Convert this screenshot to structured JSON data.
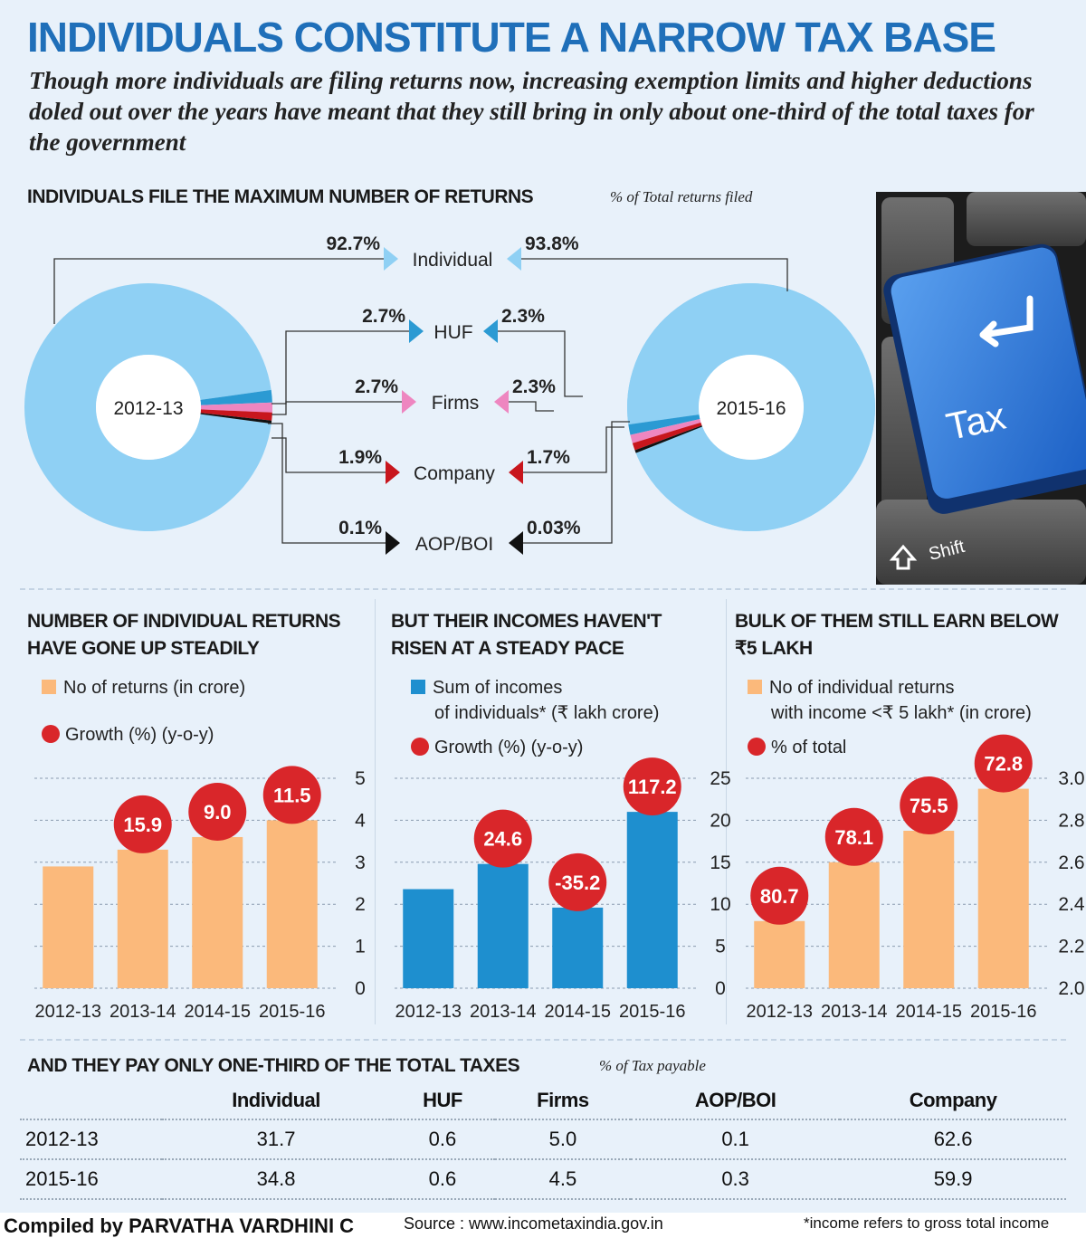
{
  "title": "INDIVIDUALS CONSTITUTE A NARROW TAX BASE",
  "subtitle": "Though more individuals are filing returns now, increasing exemption limits and higher deductions doled out over the years have meant that they still bring in only about one-third of the total taxes for the government",
  "returns_section": {
    "heading": "INDIVIDUALS FILE THE MAXIMUM NUMBER OF RETURNS",
    "note": "% of Total returns filed"
  },
  "photo": {
    "key_label": "Tax",
    "shift_label": "Shift"
  },
  "colors": {
    "individual": "#8fd0f4",
    "huf": "#2b9ad3",
    "firms": "#ee86c0",
    "company": "#c8161d",
    "aop": "#111111",
    "title_blue": "#1f6fb9",
    "bar_orange": "#fbb97b",
    "bar_blue": "#1e8fcf",
    "dot_red": "#d9262a"
  },
  "table_section": {
    "heading": "AND THEY PAY ONLY ONE-THIRD OF THE TOTAL TAXES",
    "note": "% of Tax payable",
    "columns": [
      "",
      "Individual",
      "HUF",
      "Firms",
      "AOP/BOI",
      "Company"
    ],
    "rows": [
      [
        "2012-13",
        "31.7",
        "0.6",
        "5.0",
        "0.1",
        "62.6"
      ],
      [
        "2015-16",
        "34.8",
        "0.6",
        "4.5",
        "0.3",
        "59.9"
      ]
    ]
  },
  "footer": {
    "compiled": "Compiled by PARVATHA VARDHINI C",
    "source": "Source : www.incometaxindia.gov.in",
    "footnote": "*income refers to gross total income"
  },
  "chart_data": [
    {
      "type": "pie",
      "style": "donut-pair",
      "categories": [
        "Individual",
        "HUF",
        "Firms",
        "Company",
        "AOP/BOI"
      ],
      "series": [
        {
          "name": "2012-13",
          "values": [
            92.7,
            2.7,
            2.7,
            1.9,
            0.1
          ],
          "labels": [
            "92.7%",
            "2.7%",
            "2.7%",
            "1.9%",
            "0.1%"
          ]
        },
        {
          "name": "2015-16",
          "values": [
            93.8,
            2.3,
            2.3,
            1.7,
            0.03
          ],
          "labels": [
            "93.8%",
            "2.3%",
            "2.3%",
            "1.7%",
            "0.03%"
          ]
        }
      ]
    },
    {
      "type": "bar",
      "title": "NUMBER OF INDIVIDUAL RETURNS HAVE GONE UP STEADILY",
      "legend_bar": "No of returns (in crore)",
      "legend_dot": "Growth (%) (y-o-y)",
      "categories": [
        "2012-13",
        "2013-14",
        "2014-15",
        "2015-16"
      ],
      "values": [
        2.9,
        3.3,
        3.6,
        4.0
      ],
      "growth_labels": [
        "",
        "15.9",
        "9.0",
        "11.5"
      ],
      "ylim": [
        0,
        5
      ],
      "yticks": [
        "0",
        "1",
        "2",
        "3",
        "4",
        "5"
      ],
      "tick_values": [
        0,
        1,
        2,
        3,
        4,
        5
      ],
      "axis_side": "right",
      "grid": true
    },
    {
      "type": "bar",
      "title": "BUT THEIR INCOMES HAVEN'T RISEN AT A STEADY PACE",
      "legend_bar": "Sum of incomes",
      "legend_bar_2": "of individuals* (₹ lakh crore)",
      "legend_dot": "Growth (%) (y-o-y)",
      "categories": [
        "2012-13",
        "2013-14",
        "2014-15",
        "2015-16"
      ],
      "values": [
        11.8,
        14.8,
        9.6,
        21.0
      ],
      "growth_labels": [
        "",
        "24.6",
        "-35.2",
        "117.2"
      ],
      "ylim": [
        0,
        25
      ],
      "yticks": [
        "0",
        "5",
        "10",
        "15",
        "20",
        "25"
      ],
      "tick_values": [
        0,
        5,
        10,
        15,
        20,
        25
      ],
      "axis_side": "right",
      "grid": true
    },
    {
      "type": "bar",
      "title": "BULK OF THEM STILL EARN BELOW ₹5 LAKH",
      "legend_bar": "No of individual returns",
      "legend_bar_2": "with income <₹ 5 lakh* (in crore)",
      "legend_dot": "% of total",
      "categories": [
        "2012-13",
        "2013-14",
        "2014-15",
        "2015-16"
      ],
      "values": [
        2.32,
        2.6,
        2.75,
        2.95
      ],
      "growth_labels": [
        "80.7",
        "78.1",
        "75.5",
        "72.8"
      ],
      "ylim": [
        2.0,
        3.0
      ],
      "yticks": [
        "2.0",
        "2.2",
        "2.4",
        "2.6",
        "2.8",
        "3.0"
      ],
      "tick_values": [
        2.0,
        2.2,
        2.4,
        2.6,
        2.8,
        3.0
      ],
      "axis_side": "right",
      "grid": true
    }
  ]
}
